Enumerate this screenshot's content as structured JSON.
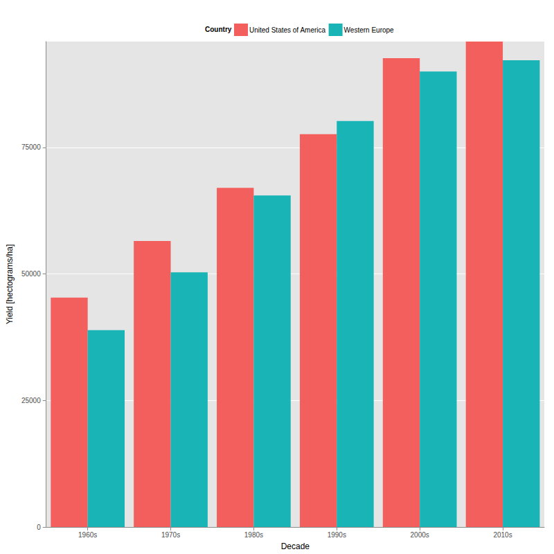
{
  "chart_data": {
    "type": "bar",
    "x_label": "Decade",
    "y_label": "Yield [hectograms/ha]",
    "legend_title": "Country",
    "categories": [
      "1960s",
      "1970s",
      "1980s",
      "1990s",
      "2000s",
      "2010s"
    ],
    "series": [
      {
        "name": "United States of America",
        "color": "#F25F5C",
        "values": [
          45300,
          56500,
          67000,
          77600,
          92600,
          95900
        ]
      },
      {
        "name": "Western Europe",
        "color": "#18B4B6",
        "values": [
          38900,
          50300,
          65500,
          80200,
          90000,
          92200
        ]
      }
    ],
    "ylim": [
      0,
      95900
    ],
    "yticks": [
      0,
      25000,
      50000,
      75000
    ],
    "grid": true,
    "legend": "top"
  }
}
